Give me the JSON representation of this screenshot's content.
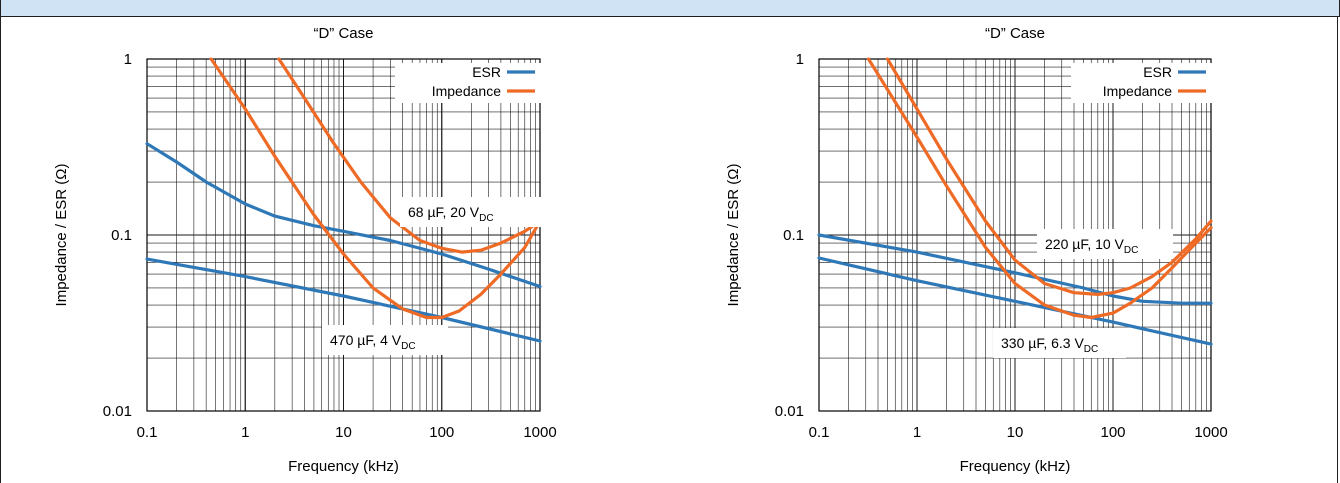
{
  "chart_data": [
    {
      "type": "line",
      "title": "“D” Case",
      "xlabel": "Frequency (kHz)",
      "ylabel": "Impedance / ESR (Ω)",
      "x_scale": "log",
      "y_scale": "log",
      "xlim": [
        0.1,
        1000
      ],
      "ylim": [
        0.01,
        1
      ],
      "x_ticks": [
        "0.1",
        "1",
        "10",
        "100",
        "1000"
      ],
      "y_ticks": [
        "0.01",
        "0.1",
        "1"
      ],
      "grid": true,
      "legend_position": "top-right",
      "legend": [
        {
          "label": "ESR",
          "color": "#2e78b7"
        },
        {
          "label": "Impedance",
          "color": "#ef6a25"
        }
      ],
      "annotations": [
        {
          "text": "68 µF, 20 V",
          "sub": "DC"
        },
        {
          "text": "470 µF, 4 V",
          "sub": "DC"
        }
      ],
      "series": [
        {
          "kind": "ESR",
          "group": "68 µF, 20 VDC",
          "x": [
            0.1,
            0.2,
            0.4,
            1,
            2,
            5,
            10,
            30,
            100,
            300,
            1000
          ],
          "y": [
            0.33,
            0.26,
            0.2,
            0.15,
            0.128,
            0.113,
            0.105,
            0.093,
            0.078,
            0.064,
            0.051
          ]
        },
        {
          "kind": "Impedance",
          "group": "68 µF, 20 VDC",
          "x": [
            2.2,
            4,
            8,
            15,
            30,
            60,
            100,
            160,
            250,
            400,
            700,
            1000
          ],
          "y": [
            1.0,
            0.6,
            0.33,
            0.2,
            0.125,
            0.093,
            0.084,
            0.08,
            0.082,
            0.09,
            0.105,
            0.12
          ]
        },
        {
          "kind": "ESR",
          "group": "470 µF, 4 VDC",
          "x": [
            0.1,
            1,
            10,
            100,
            1000
          ],
          "y": [
            0.073,
            0.058,
            0.045,
            0.034,
            0.025
          ]
        },
        {
          "kind": "Impedance",
          "group": "470 µF, 4 VDC",
          "x": [
            0.45,
            1,
            2,
            5,
            10,
            20,
            40,
            70,
            100,
            150,
            250,
            400,
            700,
            1000
          ],
          "y": [
            1.0,
            0.52,
            0.28,
            0.13,
            0.078,
            0.05,
            0.038,
            0.034,
            0.034,
            0.037,
            0.046,
            0.06,
            0.085,
            0.12
          ]
        }
      ]
    },
    {
      "type": "line",
      "title": "“D” Case",
      "xlabel": "Frequency (kHz)",
      "ylabel": "Impedance / ESR (Ω)",
      "x_scale": "log",
      "y_scale": "log",
      "xlim": [
        0.1,
        1000
      ],
      "ylim": [
        0.01,
        1
      ],
      "x_ticks": [
        "0.1",
        "1",
        "10",
        "100",
        "1000"
      ],
      "y_ticks": [
        "0.01",
        "0.1",
        "1"
      ],
      "grid": true,
      "legend_position": "top-right",
      "legend": [
        {
          "label": "ESR",
          "color": "#2e78b7"
        },
        {
          "label": "Impedance",
          "color": "#ef6a25"
        }
      ],
      "annotations": [
        {
          "text": "220 µF, 10 V",
          "sub": "DC"
        },
        {
          "text": "330 µF, 6.3 V",
          "sub": "DC"
        }
      ],
      "series": [
        {
          "kind": "ESR",
          "group": "220 µF, 10 VDC",
          "x": [
            0.1,
            1,
            10,
            50,
            100,
            200,
            500,
            1000
          ],
          "y": [
            0.1,
            0.08,
            0.061,
            0.05,
            0.045,
            0.042,
            0.041,
            0.041
          ]
        },
        {
          "kind": "Impedance",
          "group": "220 µF, 10 VDC",
          "x": [
            0.5,
            1,
            2,
            5,
            10,
            20,
            40,
            70,
            100,
            150,
            250,
            400,
            700,
            1000
          ],
          "y": [
            1.0,
            0.52,
            0.27,
            0.12,
            0.072,
            0.053,
            0.047,
            0.046,
            0.047,
            0.05,
            0.058,
            0.07,
            0.095,
            0.12
          ]
        },
        {
          "kind": "ESR",
          "group": "330 µF, 6.3 VDC",
          "x": [
            0.1,
            1,
            10,
            100,
            1000
          ],
          "y": [
            0.074,
            0.055,
            0.042,
            0.032,
            0.024
          ]
        },
        {
          "kind": "Impedance",
          "group": "330 µF, 6.3 VDC",
          "x": [
            0.32,
            1,
            2,
            5,
            10,
            20,
            40,
            60,
            100,
            150,
            250,
            400,
            700,
            1000
          ],
          "y": [
            1.0,
            0.36,
            0.19,
            0.085,
            0.053,
            0.04,
            0.035,
            0.034,
            0.036,
            0.041,
            0.05,
            0.065,
            0.09,
            0.11
          ]
        }
      ]
    }
  ]
}
